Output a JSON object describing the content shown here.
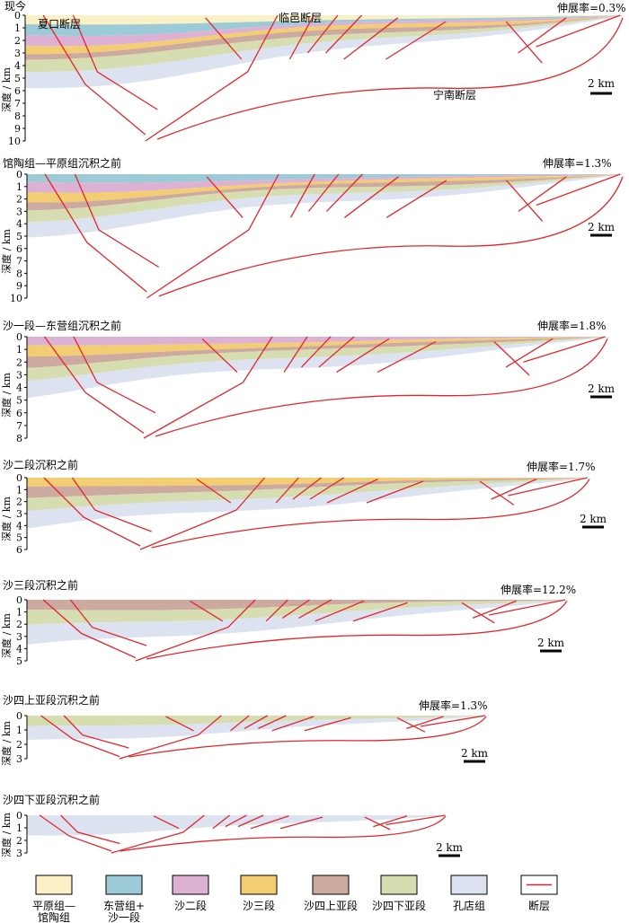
{
  "colors": {
    "pingyuan_guantao": "#FBF1C7",
    "dongying_sha1": "#9CCBD7",
    "sha2": "#DDB1D4",
    "sha3": "#F2CD72",
    "sha4_upper": "#CDAAA0",
    "sha4_lower": "#D6DDB0",
    "kongdian": "#DCE2F0",
    "fault": "#E0262B"
  },
  "axis_label": "深度 / km",
  "scale_label": "2 km",
  "panels": [
    {
      "title": "现今",
      "extension": "伸展率=0.3%",
      "ticks": [
        "0",
        "1",
        "2",
        "3",
        "4",
        "5",
        "6",
        "7",
        "8",
        "9",
        "10"
      ],
      "fault_labels": [
        "夏口断层",
        "临邑断层",
        "宁南断层"
      ]
    },
    {
      "title": "馆陶组—平原组沉积之前",
      "extension": "伸展率=1.3%",
      "ticks": [
        "0",
        "1",
        "2",
        "3",
        "4",
        "5",
        "6",
        "7",
        "8",
        "9",
        "10"
      ]
    },
    {
      "title": "沙一段—东营组沉积之前",
      "extension": "伸展率=1.8%",
      "ticks": [
        "0",
        "1",
        "2",
        "3",
        "4",
        "5",
        "6",
        "7",
        "8"
      ]
    },
    {
      "title": "沙二段沉积之前",
      "extension": "伸展率=1.7%",
      "ticks": [
        "0",
        "1",
        "2",
        "3",
        "4",
        "5",
        "6"
      ]
    },
    {
      "title": "沙三段沉积之前",
      "extension": "伸展率=12.2%",
      "ticks": [
        "0",
        "1",
        "2",
        "3",
        "4",
        "5"
      ]
    },
    {
      "title": "沙四上亚段沉积之前",
      "extension": "伸展率=1.3%",
      "ticks": [
        "0",
        "1",
        "2",
        "3"
      ]
    },
    {
      "title": "沙四下亚段沉积之前",
      "extension": "",
      "ticks": [
        "0",
        "1",
        "2",
        "3"
      ]
    }
  ],
  "legend": [
    {
      "lines": [
        "平原组—",
        "馆陶组"
      ],
      "color_key": "pingyuan_guantao"
    },
    {
      "lines": [
        "东营组+",
        "沙一段"
      ],
      "color_key": "dongying_sha1"
    },
    {
      "lines": [
        "沙二段"
      ],
      "color_key": "sha2"
    },
    {
      "lines": [
        "沙三段"
      ],
      "color_key": "sha3"
    },
    {
      "lines": [
        "沙四上亚段"
      ],
      "color_key": "sha4_upper"
    },
    {
      "lines": [
        "沙四下亚段"
      ],
      "color_key": "sha4_lower"
    },
    {
      "lines": [
        "孔店组"
      ],
      "color_key": "kongdian"
    },
    {
      "lines": [
        "断层"
      ],
      "color_key": "fault",
      "is_line": true
    }
  ]
}
